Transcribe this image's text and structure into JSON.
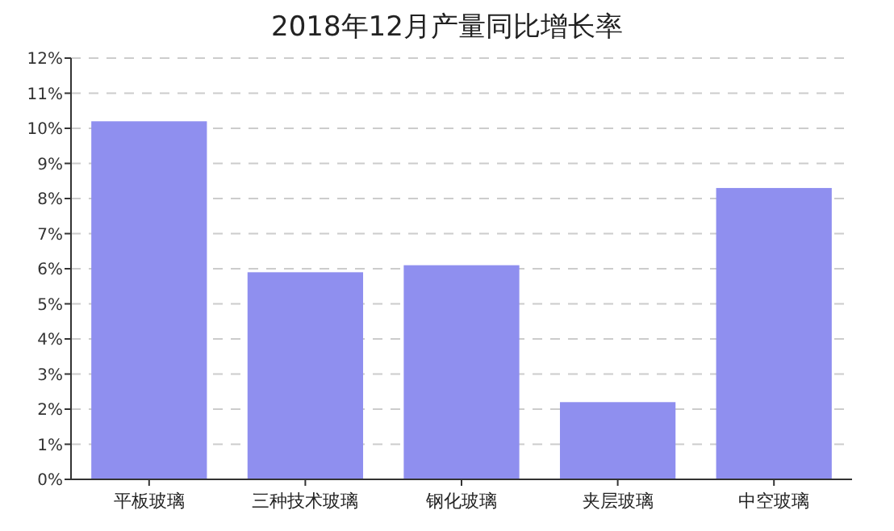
{
  "chart_data": {
    "type": "bar",
    "title": "2018年12月产量同比增长率",
    "categories": [
      "平板玻璃",
      "三种技术玻璃",
      "钢化玻璃",
      "夹层玻璃",
      "中空玻璃"
    ],
    "values": [
      10.2,
      5.9,
      6.1,
      2.2,
      8.3
    ],
    "color": "#8f8fef",
    "ylim": [
      0,
      12
    ],
    "yticks": [
      {
        "value": 0,
        "label": "0%"
      },
      {
        "value": 1,
        "label": "1%"
      },
      {
        "value": 2,
        "label": "2%"
      },
      {
        "value": 3,
        "label": "3%"
      },
      {
        "value": 4,
        "label": "4%"
      },
      {
        "value": 5,
        "label": "5%"
      },
      {
        "value": 6,
        "label": "6%"
      },
      {
        "value": 7,
        "label": "7%"
      },
      {
        "value": 8,
        "label": "8%"
      },
      {
        "value": 9,
        "label": "9%"
      },
      {
        "value": 10,
        "label": "10%"
      },
      {
        "value": 11,
        "label": "11%"
      },
      {
        "value": 12,
        "label": "12%"
      }
    ],
    "grid": "y"
  }
}
